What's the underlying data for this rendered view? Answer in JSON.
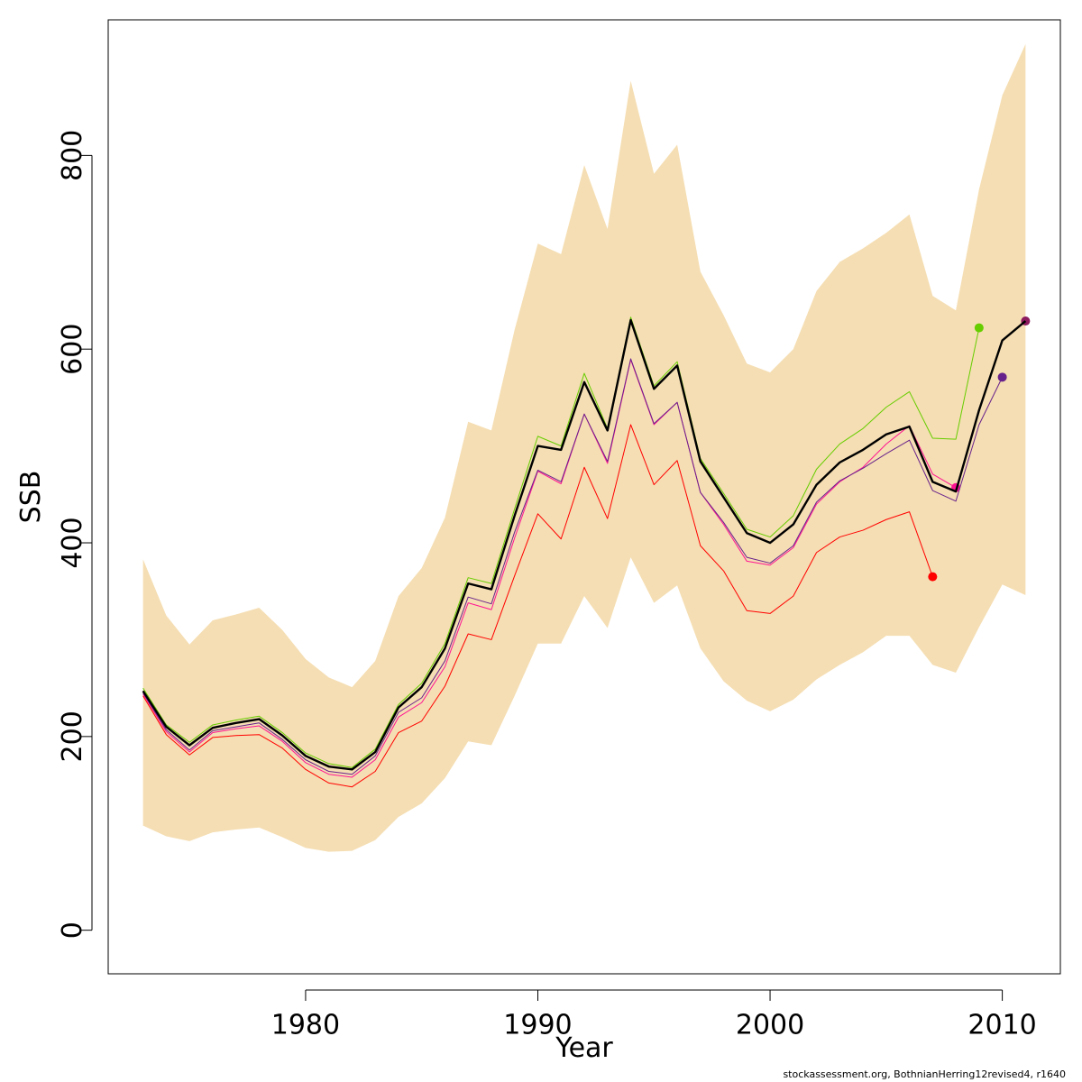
{
  "chart_data": {
    "type": "line",
    "title": "",
    "xlabel": "Year",
    "ylabel": "SSB",
    "xlim": [
      1971.5,
      2012.5
    ],
    "ylim": [
      -45,
      940
    ],
    "x_ticks": [
      1980,
      1990,
      2000,
      2010
    ],
    "y_ticks": [
      0,
      200,
      400,
      600,
      800
    ],
    "grid": false,
    "legend": "none",
    "band": {
      "color": "#f5deb3",
      "x": [
        1973,
        1974,
        1975,
        1976,
        1977,
        1978,
        1979,
        1980,
        1981,
        1982,
        1983,
        1984,
        1985,
        1986,
        1987,
        1988,
        1989,
        1990,
        1991,
        1992,
        1993,
        1994,
        1995,
        1996,
        1997,
        1998,
        1999,
        2000,
        2001,
        2002,
        2003,
        2004,
        2005,
        2006,
        2007,
        2008,
        2009,
        2010,
        2011
      ],
      "upper": [
        383,
        325,
        295,
        320,
        326,
        333,
        310,
        280,
        261,
        251,
        278,
        345,
        374,
        426,
        525,
        516,
        620,
        709,
        698,
        790,
        724,
        877,
        781,
        811,
        680,
        635,
        585,
        576,
        600,
        660,
        690,
        704,
        720,
        739,
        655,
        640,
        765,
        862,
        915
      ],
      "lower": [
        108,
        97,
        92,
        101,
        104,
        106,
        96,
        85,
        81,
        82,
        93,
        117,
        131,
        157,
        195,
        191,
        242,
        296,
        296,
        345,
        312,
        385,
        338,
        356,
        291,
        257,
        237,
        226,
        238,
        259,
        274,
        287,
        304,
        304,
        274,
        266,
        313,
        357,
        346
      ]
    },
    "series": [
      {
        "color": "#ff0000",
        "width": 1,
        "x": [
          1973,
          1974,
          1975,
          1976,
          1977,
          1978,
          1979,
          1980,
          1981,
          1982,
          1983,
          1984,
          1985,
          1986,
          1987,
          1988,
          1989,
          1990,
          1991,
          1992,
          1993,
          1994,
          1995,
          1996,
          1997,
          1998,
          1999,
          2000,
          2001,
          2002,
          2003,
          2004,
          2005,
          2006,
          2007
        ],
        "values": [
          242,
          202,
          181,
          199,
          201,
          202,
          188,
          166,
          152,
          148,
          164,
          204,
          216,
          252,
          306,
          300,
          366,
          430,
          404,
          478,
          425,
          522,
          460,
          485,
          397,
          371,
          330,
          327,
          345,
          390,
          406,
          413,
          424,
          432,
          365
        ],
        "end_point": true
      },
      {
        "color": "#ff1493",
        "width": 1,
        "x": [
          1973,
          1974,
          1975,
          1976,
          1977,
          1978,
          1979,
          1980,
          1981,
          1982,
          1983,
          1984,
          1985,
          1986,
          1987,
          1988,
          1989,
          1990,
          1991,
          1992,
          1993,
          1994,
          1995,
          1996,
          1997,
          1998,
          1999,
          2000,
          2001,
          2002,
          2003,
          2004,
          2005,
          2006,
          2007,
          2008
        ],
        "values": [
          244,
          205,
          184,
          204,
          208,
          211,
          195,
          173,
          161,
          158,
          176,
          220,
          235,
          272,
          338,
          331,
          405,
          474,
          461,
          533,
          482,
          589,
          522,
          545,
          452,
          419,
          381,
          377,
          395,
          440,
          463,
          478,
          502,
          521,
          471,
          457
        ],
        "end_point": true
      },
      {
        "color": "#66cd00",
        "width": 1,
        "x": [
          1973,
          1974,
          1975,
          1976,
          1977,
          1978,
          1979,
          1980,
          1981,
          1982,
          1983,
          1984,
          1985,
          1986,
          1987,
          1988,
          1989,
          1990,
          1991,
          1992,
          1993,
          1994,
          1995,
          1996,
          1997,
          1998,
          1999,
          2000,
          2001,
          2002,
          2003,
          2004,
          2005,
          2006,
          2007,
          2008,
          2009
        ],
        "values": [
          250,
          212,
          194,
          212,
          217,
          221,
          204,
          183,
          172,
          168,
          187,
          233,
          255,
          296,
          364,
          358,
          435,
          510,
          500,
          575,
          518,
          633,
          562,
          587,
          487,
          451,
          414,
          406,
          428,
          476,
          502,
          518,
          540,
          556,
          508,
          507,
          622
        ],
        "end_point": true
      },
      {
        "color": "#68228b",
        "width": 1,
        "x": [
          1973,
          1974,
          1975,
          1976,
          1977,
          1978,
          1979,
          1980,
          1981,
          1982,
          1983,
          1984,
          1985,
          1986,
          1987,
          1988,
          1989,
          1990,
          1991,
          1992,
          1993,
          1994,
          1995,
          1996,
          1997,
          1998,
          1999,
          2000,
          2001,
          2002,
          2003,
          2004,
          2005,
          2006,
          2007,
          2008,
          2009,
          2010
        ],
        "values": [
          245,
          207,
          186,
          206,
          210,
          214,
          197,
          176,
          164,
          161,
          180,
          225,
          240,
          278,
          344,
          337,
          411,
          475,
          463,
          533,
          484,
          590,
          523,
          545,
          452,
          421,
          385,
          379,
          397,
          442,
          464,
          477,
          492,
          506,
          454,
          443,
          522,
          571
        ],
        "end_point": true
      },
      {
        "color": "#8b1a5e",
        "width": 1,
        "x": [
          1973,
          1974,
          1975,
          1976,
          1977,
          1978,
          1979,
          1980,
          1981,
          1982,
          1983,
          1984,
          1985,
          1986,
          1987,
          1988,
          1989,
          1990,
          1991,
          1992,
          1993,
          1994,
          1995,
          1996,
          1997,
          1998,
          1999,
          2000,
          2001,
          2002,
          2003,
          2004,
          2005,
          2006,
          2007,
          2008,
          2009,
          2010,
          2011
        ],
        "values": [
          247,
          210,
          191,
          209,
          214,
          218,
          201,
          180,
          169,
          166,
          184,
          230,
          251,
          291,
          358,
          352,
          428,
          500,
          496,
          566,
          516,
          630,
          559,
          583,
          484,
          447,
          410,
          400,
          419,
          460,
          483,
          496,
          512,
          520,
          463,
          453,
          537,
          609,
          629
        ],
        "end_point": true
      },
      {
        "color": "#000000",
        "width": 2.4,
        "x": [
          1973,
          1974,
          1975,
          1976,
          1977,
          1978,
          1979,
          1980,
          1981,
          1982,
          1983,
          1984,
          1985,
          1986,
          1987,
          1988,
          1989,
          1990,
          1991,
          1992,
          1993,
          1994,
          1995,
          1996,
          1997,
          1998,
          1999,
          2000,
          2001,
          2002,
          2003,
          2004,
          2005,
          2006,
          2007,
          2008,
          2009,
          2010,
          2011
        ],
        "values": [
          247,
          210,
          191,
          209,
          214,
          218,
          201,
          180,
          169,
          166,
          184,
          230,
          251,
          291,
          358,
          352,
          428,
          500,
          496,
          566,
          516,
          630,
          559,
          583,
          484,
          447,
          410,
          400,
          419,
          460,
          483,
          496,
          512,
          520,
          463,
          453,
          537,
          609,
          629
        ],
        "end_point": false
      }
    ]
  },
  "footer": "stockassessment.org, BothnianHerring12revised4, r1640"
}
